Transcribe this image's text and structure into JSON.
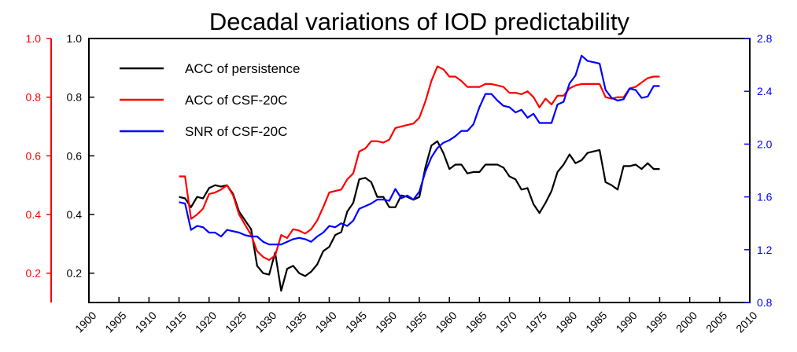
{
  "chart_data": {
    "type": "line",
    "title": "Decadal variations of IOD predictability",
    "x_axis": {
      "range": [
        1900,
        2010
      ],
      "ticks": [
        1900,
        1905,
        1910,
        1915,
        1920,
        1925,
        1930,
        1935,
        1940,
        1945,
        1950,
        1955,
        1960,
        1965,
        1970,
        1975,
        1980,
        1985,
        1990,
        1995,
        2000,
        2005,
        2010
      ],
      "tick_labels": [
        "1900",
        "1905",
        "1910",
        "1915",
        "1920",
        "1925",
        "1930",
        "1935",
        "1940",
        "1945",
        "1950",
        "1955",
        "1960",
        "1965",
        "1970",
        "1975",
        "1980",
        "1985",
        "1990",
        "1995",
        "2000",
        "2005",
        "2010"
      ]
    },
    "y_left_outer": {
      "range": [
        0.1,
        1.0
      ],
      "ticks": [
        0.2,
        0.4,
        0.6,
        0.8,
        1.0
      ],
      "tick_labels": [
        "0.2",
        "0.4",
        "0.6",
        "0.8",
        "1.0"
      ],
      "color": "#ff0000"
    },
    "y_left_inner": {
      "range": [
        0.1,
        1.0
      ],
      "ticks": [
        0.2,
        0.4,
        0.6,
        0.8,
        1.0
      ],
      "tick_labels": [
        "0.2",
        "0.4",
        "0.6",
        "0.8",
        "1.0"
      ],
      "color": "#000000"
    },
    "y_right": {
      "range": [
        0.8,
        2.8
      ],
      "ticks": [
        0.8,
        1.2,
        1.6,
        2.0,
        2.4,
        2.8
      ],
      "tick_labels": [
        "0.8",
        "1.2",
        "1.6",
        "2.0",
        "2.4",
        "2.8"
      ],
      "color": "#0000ff"
    },
    "legend": {
      "position": "top-left"
    },
    "series": [
      {
        "name": "ACC of persistence",
        "color": "#000000",
        "axis": "left",
        "x": [
          1915,
          1916,
          1917,
          1918,
          1919,
          1920,
          1921,
          1922,
          1923,
          1924,
          1925,
          1926,
          1927,
          1928,
          1929,
          1930,
          1931,
          1932,
          1933,
          1934,
          1935,
          1936,
          1937,
          1938,
          1939,
          1940,
          1941,
          1942,
          1943,
          1944,
          1945,
          1946,
          1947,
          1948,
          1949,
          1950,
          1951,
          1952,
          1953,
          1954,
          1955,
          1956,
          1957,
          1958,
          1959,
          1960,
          1961,
          1962,
          1963,
          1964,
          1965,
          1966,
          1967,
          1968,
          1969,
          1970,
          1971,
          1972,
          1973,
          1974,
          1975,
          1976,
          1977,
          1978,
          1979,
          1980,
          1981,
          1982,
          1983,
          1984,
          1985,
          1986,
          1987,
          1988,
          1989,
          1990,
          1991,
          1992,
          1993,
          1994,
          1995
        ],
        "values": [
          0.46,
          0.455,
          0.425,
          0.46,
          0.455,
          0.49,
          0.5,
          0.495,
          0.5,
          0.47,
          0.41,
          0.38,
          0.35,
          0.225,
          0.2,
          0.195,
          0.27,
          0.14,
          0.215,
          0.225,
          0.2,
          0.19,
          0.205,
          0.23,
          0.275,
          0.29,
          0.33,
          0.34,
          0.41,
          0.44,
          0.52,
          0.525,
          0.51,
          0.46,
          0.46,
          0.425,
          0.425,
          0.465,
          0.46,
          0.45,
          0.46,
          0.56,
          0.635,
          0.65,
          0.61,
          0.555,
          0.57,
          0.57,
          0.54,
          0.545,
          0.545,
          0.57,
          0.57,
          0.57,
          0.56,
          0.53,
          0.52,
          0.485,
          0.49,
          0.435,
          0.405,
          0.44,
          0.48,
          0.545,
          0.57,
          0.605,
          0.575,
          0.585,
          0.61,
          0.615,
          0.62,
          0.51,
          0.5,
          0.485,
          0.565,
          0.565,
          0.57,
          0.555,
          0.575,
          0.555,
          0.555
        ]
      },
      {
        "name": "ACC of CSF-20C",
        "color": "#ff0000",
        "axis": "left",
        "x": [
          1915,
          1916,
          1917,
          1918,
          1919,
          1920,
          1921,
          1922,
          1923,
          1924,
          1925,
          1926,
          1927,
          1928,
          1929,
          1930,
          1931,
          1932,
          1933,
          1934,
          1935,
          1936,
          1937,
          1938,
          1939,
          1940,
          1941,
          1942,
          1943,
          1944,
          1945,
          1946,
          1947,
          1948,
          1949,
          1950,
          1951,
          1952,
          1953,
          1954,
          1955,
          1956,
          1957,
          1958,
          1959,
          1960,
          1961,
          1962,
          1963,
          1964,
          1965,
          1966,
          1967,
          1968,
          1969,
          1970,
          1971,
          1972,
          1973,
          1974,
          1975,
          1976,
          1977,
          1978,
          1979,
          1980,
          1981,
          1982,
          1983,
          1984,
          1985,
          1986,
          1987,
          1988,
          1989,
          1990,
          1991,
          1992,
          1993,
          1994,
          1995
        ],
        "values": [
          0.53,
          0.53,
          0.385,
          0.4,
          0.42,
          0.47,
          0.475,
          0.485,
          0.5,
          0.465,
          0.4,
          0.365,
          0.33,
          0.275,
          0.255,
          0.245,
          0.26,
          0.33,
          0.32,
          0.35,
          0.345,
          0.335,
          0.35,
          0.38,
          0.425,
          0.475,
          0.48,
          0.485,
          0.52,
          0.54,
          0.615,
          0.625,
          0.65,
          0.65,
          0.645,
          0.655,
          0.695,
          0.7,
          0.705,
          0.71,
          0.73,
          0.785,
          0.855,
          0.905,
          0.895,
          0.87,
          0.87,
          0.855,
          0.835,
          0.835,
          0.835,
          0.845,
          0.845,
          0.84,
          0.835,
          0.815,
          0.815,
          0.81,
          0.82,
          0.8,
          0.765,
          0.795,
          0.775,
          0.805,
          0.805,
          0.83,
          0.84,
          0.845,
          0.845,
          0.845,
          0.845,
          0.8,
          0.795,
          0.8,
          0.8,
          0.83,
          0.835,
          0.85,
          0.865,
          0.87,
          0.87
        ]
      },
      {
        "name": "SNR of CSF-20C",
        "color": "#0000ff",
        "axis": "right",
        "x": [
          1915,
          1916,
          1917,
          1918,
          1919,
          1920,
          1921,
          1922,
          1923,
          1924,
          1925,
          1926,
          1927,
          1928,
          1929,
          1930,
          1931,
          1932,
          1933,
          1934,
          1935,
          1936,
          1937,
          1938,
          1939,
          1940,
          1941,
          1942,
          1943,
          1944,
          1945,
          1946,
          1947,
          1948,
          1949,
          1950,
          1951,
          1952,
          1953,
          1954,
          1955,
          1956,
          1957,
          1958,
          1959,
          1960,
          1961,
          1962,
          1963,
          1964,
          1965,
          1966,
          1967,
          1968,
          1969,
          1970,
          1971,
          1972,
          1973,
          1974,
          1975,
          1976,
          1977,
          1978,
          1979,
          1980,
          1981,
          1982,
          1983,
          1984,
          1985,
          1986,
          1987,
          1988,
          1989,
          1990,
          1991,
          1992,
          1993,
          1994,
          1995
        ],
        "values": [
          1.56,
          1.55,
          1.35,
          1.38,
          1.37,
          1.33,
          1.33,
          1.3,
          1.35,
          1.34,
          1.33,
          1.31,
          1.3,
          1.3,
          1.26,
          1.24,
          1.24,
          1.24,
          1.26,
          1.28,
          1.29,
          1.28,
          1.26,
          1.3,
          1.33,
          1.38,
          1.37,
          1.4,
          1.38,
          1.42,
          1.51,
          1.53,
          1.55,
          1.58,
          1.58,
          1.57,
          1.66,
          1.59,
          1.61,
          1.58,
          1.64,
          1.79,
          1.9,
          1.97,
          2.01,
          2.03,
          2.06,
          2.1,
          2.1,
          2.15,
          2.28,
          2.38,
          2.38,
          2.33,
          2.29,
          2.28,
          2.24,
          2.26,
          2.2,
          2.23,
          2.16,
          2.16,
          2.16,
          2.3,
          2.32,
          2.46,
          2.52,
          2.67,
          2.63,
          2.62,
          2.61,
          2.41,
          2.35,
          2.33,
          2.34,
          2.42,
          2.41,
          2.35,
          2.36,
          2.44,
          2.44
        ]
      }
    ]
  }
}
